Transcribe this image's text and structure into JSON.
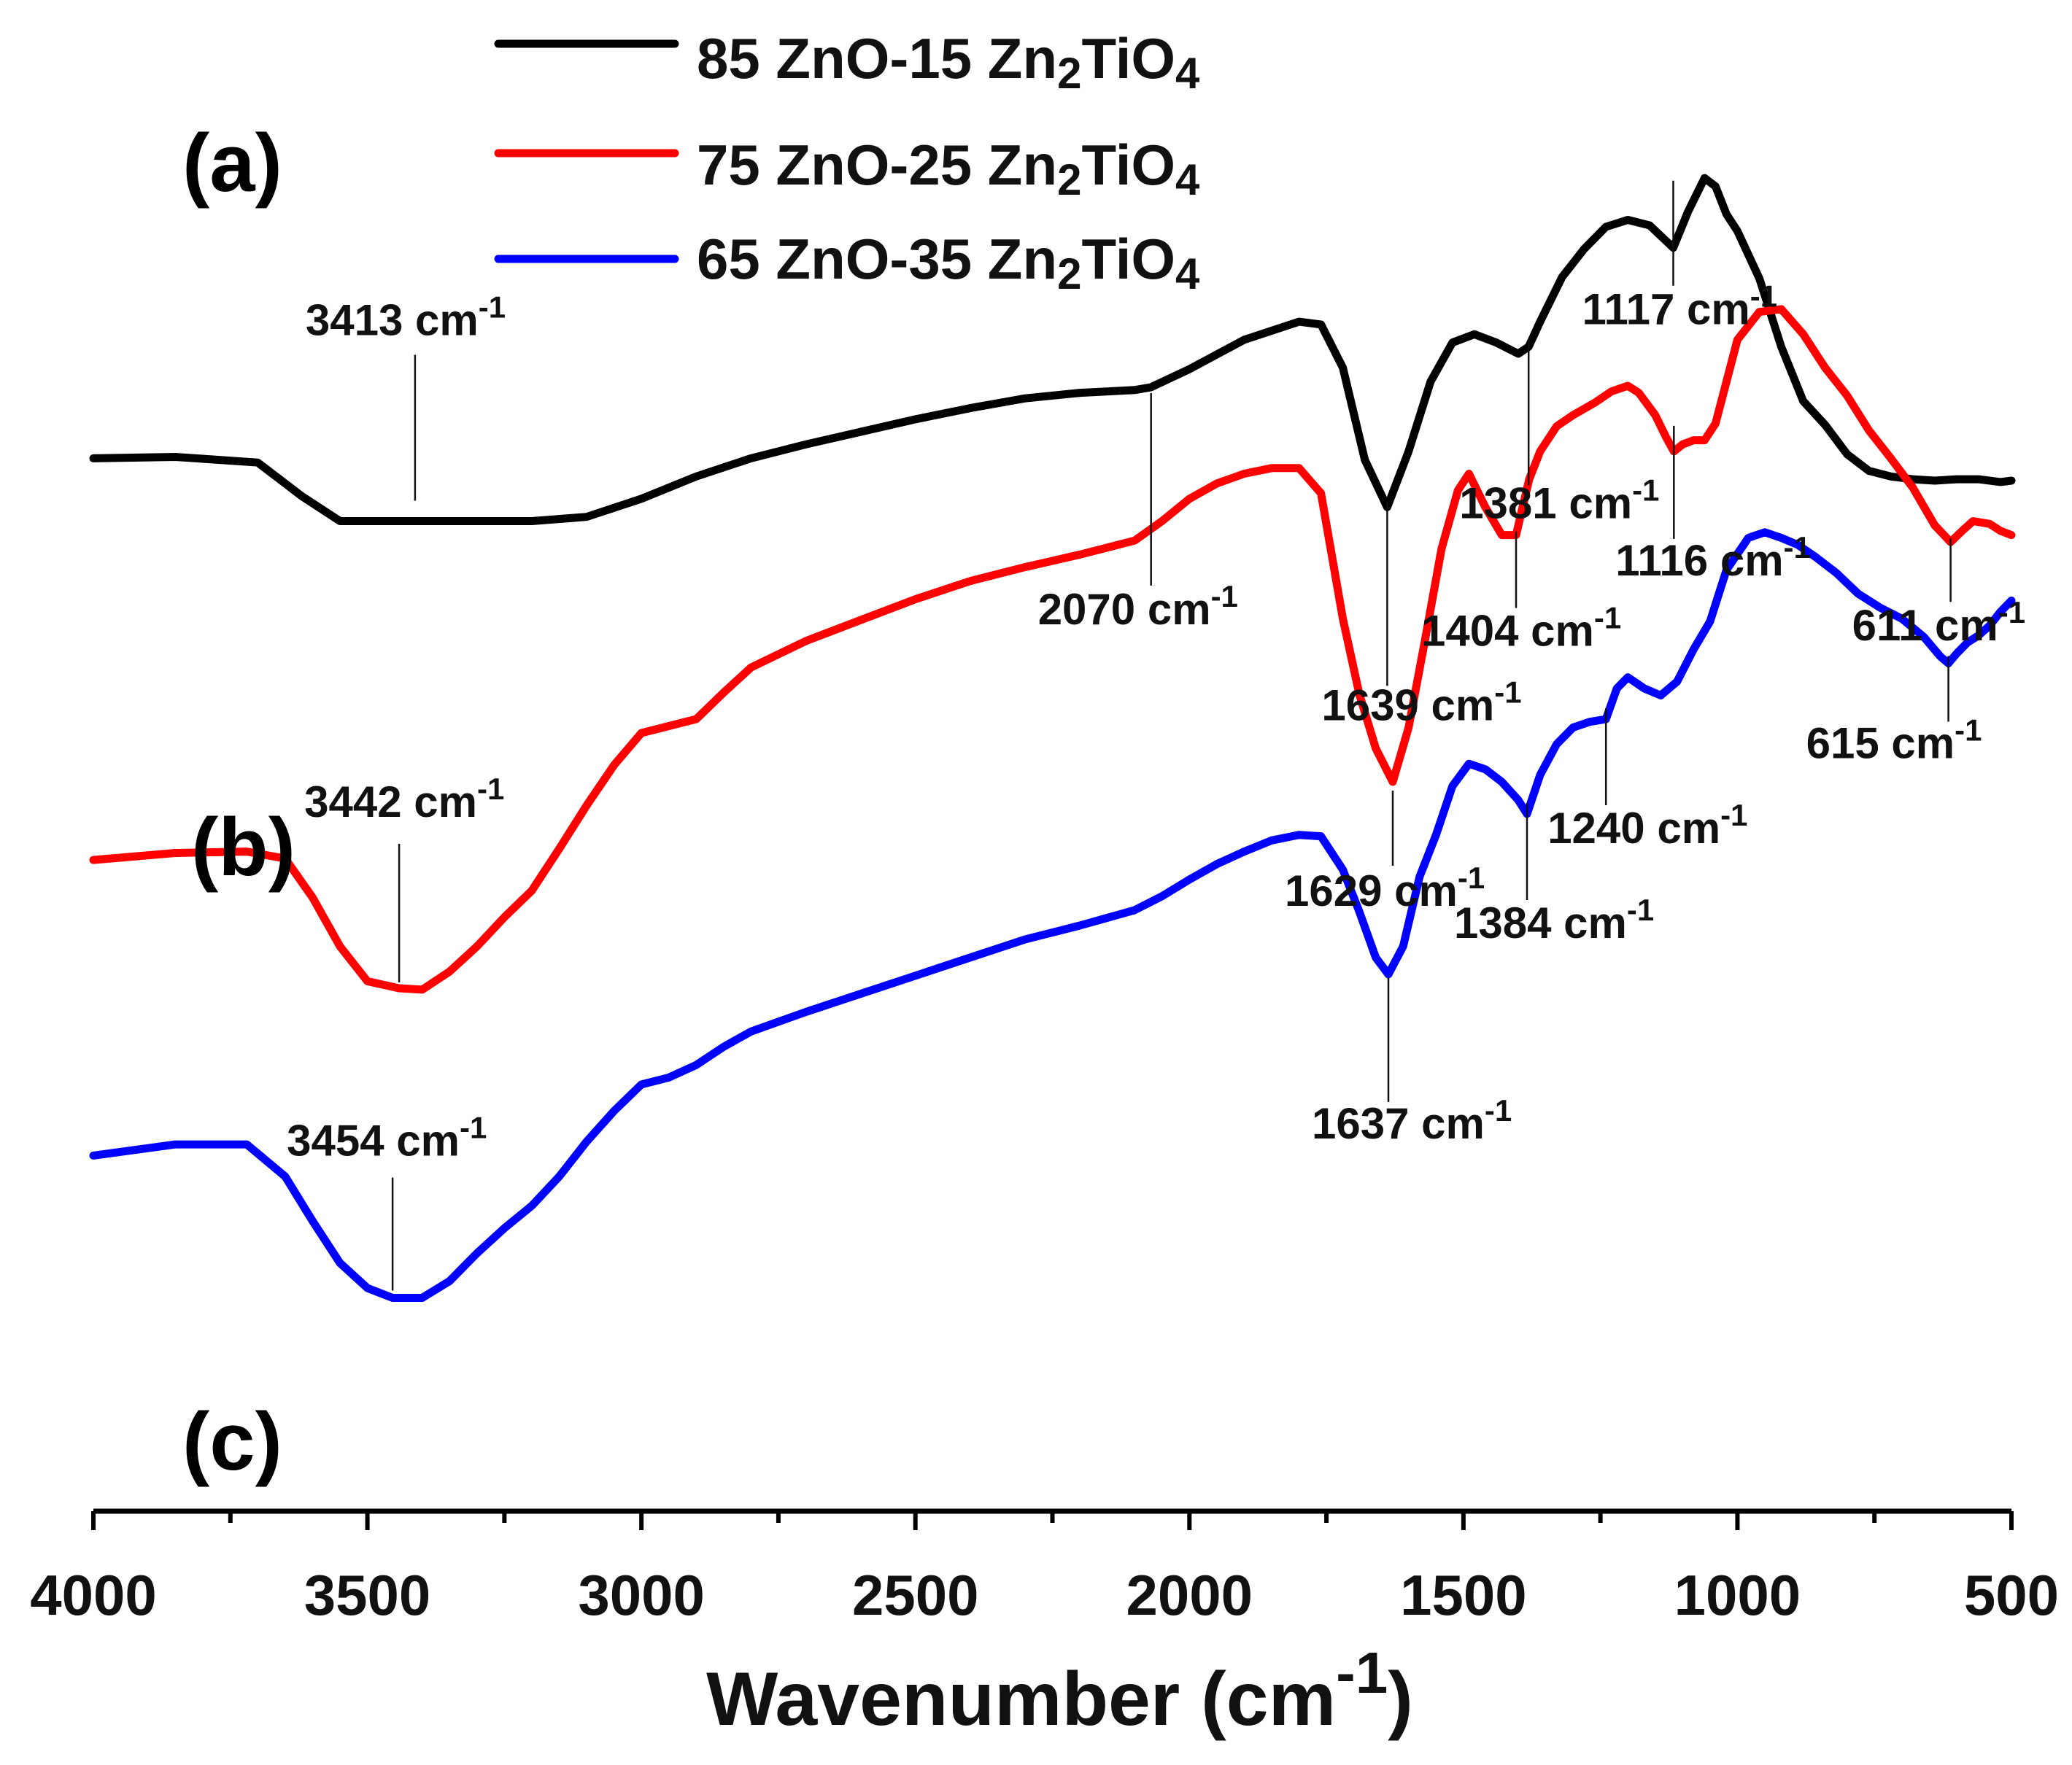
{
  "chart_data": {
    "type": "line",
    "title": "",
    "xlabel": "Wavenumber (cm",
    "xlabel_sup": "-1",
    "xlabel_close": ")",
    "ylabel": "",
    "xlim": [
      4000,
      500
    ],
    "x_reversed": true,
    "ylim": [
      0,
      100
    ],
    "y_axis_shown": false,
    "grid": false,
    "legend_position": "top-center",
    "x_ticks": [
      4000,
      3500,
      3000,
      2500,
      2000,
      1500,
      1000,
      500
    ],
    "x_tick_labels": [
      "4000",
      "3500",
      "3000",
      "2500",
      "2000",
      "1500",
      "1000",
      "500"
    ],
    "series": [
      {
        "name": "85 ZnO-15 Zn2TiO4",
        "legend_label": {
          "lead": "85 ZnO-15 Zn",
          "sub1": "2",
          "mid": "TiO",
          "sub2": "4"
        },
        "panel": "(a)",
        "color": "#000000",
        "x": [
          4000,
          3850,
          3700,
          3620,
          3550,
          3413,
          3300,
          3200,
          3100,
          3000,
          2900,
          2800,
          2700,
          2600,
          2500,
          2400,
          2300,
          2200,
          2100,
          2070,
          2000,
          1900,
          1800,
          1760,
          1720,
          1680,
          1639,
          1600,
          1560,
          1520,
          1480,
          1440,
          1400,
          1381,
          1360,
          1320,
          1280,
          1240,
          1200,
          1160,
          1117,
          1090,
          1060,
          1040,
          1020,
          1000,
          960,
          920,
          880,
          840,
          800,
          760,
          720,
          680,
          640,
          600,
          560,
          520,
          500
        ],
        "y": [
          75.5,
          75.6,
          75.2,
          72.8,
          71.0,
          71.0,
          71.0,
          71.0,
          71.3,
          72.6,
          74.2,
          75.5,
          76.5,
          77.4,
          78.3,
          79.1,
          79.8,
          80.2,
          80.4,
          80.6,
          81.9,
          84.0,
          85.3,
          85.1,
          82.0,
          75.4,
          72.0,
          76.0,
          81.0,
          83.8,
          84.4,
          83.8,
          83.0,
          83.5,
          85.3,
          88.5,
          90.5,
          92.1,
          92.6,
          92.2,
          90.6,
          93.2,
          95.6,
          95.0,
          93.0,
          91.8,
          88.4,
          83.5,
          79.6,
          77.9,
          75.8,
          74.6,
          74.2,
          74.0,
          73.9,
          74.0,
          74.0,
          73.8,
          73.9
        ],
        "peak_labels": [
          {
            "x": 3413,
            "text": "3413 cm",
            "sup": "-1"
          },
          {
            "x": 2070,
            "text": "2070 cm",
            "sup": "-1"
          },
          {
            "x": 1639,
            "text": "1639 cm",
            "sup": "-1"
          },
          {
            "x": 1381,
            "text": "1381 cm",
            "sup": "-1"
          },
          {
            "x": 1117,
            "text": "1117 cm",
            "sup": "-1"
          }
        ]
      },
      {
        "name": "75 ZnO-25 Zn2TiO4",
        "legend_label": {
          "lead": "75 ZnO-25 Zn",
          "sub1": "2",
          "mid": "TiO",
          "sub2": "4"
        },
        "panel": "(b)",
        "color": "#ff0000",
        "x": [
          4000,
          3850,
          3720,
          3650,
          3600,
          3550,
          3500,
          3442,
          3400,
          3350,
          3300,
          3250,
          3200,
          3150,
          3100,
          3050,
          3000,
          2950,
          2900,
          2850,
          2800,
          2700,
          2600,
          2500,
          2400,
          2300,
          2200,
          2100,
          2050,
          2000,
          1950,
          1900,
          1850,
          1800,
          1760,
          1720,
          1690,
          1660,
          1629,
          1600,
          1570,
          1540,
          1510,
          1490,
          1460,
          1430,
          1404,
          1380,
          1360,
          1330,
          1300,
          1260,
          1230,
          1200,
          1180,
          1150,
          1130,
          1116,
          1100,
          1080,
          1060,
          1040,
          1000,
          960,
          920,
          880,
          840,
          800,
          760,
          720,
          680,
          640,
          611,
          590,
          570,
          540,
          520,
          500
        ],
        "y": [
          46.7,
          47.2,
          47.3,
          46.8,
          44.0,
          40.5,
          38.0,
          37.5,
          37.4,
          38.7,
          40.5,
          42.6,
          44.5,
          47.5,
          50.6,
          53.5,
          55.8,
          56.3,
          56.8,
          58.7,
          60.5,
          62.4,
          63.9,
          65.4,
          66.7,
          67.7,
          68.6,
          69.6,
          71.0,
          72.6,
          73.7,
          74.4,
          74.8,
          74.8,
          73.0,
          64.0,
          58.6,
          54.7,
          52.3,
          56.2,
          62.5,
          69.0,
          73.2,
          74.4,
          72.0,
          70.0,
          70.0,
          74.0,
          76.0,
          77.8,
          78.6,
          79.5,
          80.3,
          80.7,
          80.2,
          78.6,
          77.0,
          76.0,
          76.5,
          76.8,
          76.8,
          78.0,
          84.0,
          86.0,
          86.2,
          84.4,
          82.0,
          80.0,
          77.5,
          75.5,
          73.4,
          70.7,
          69.5,
          70.3,
          71.0,
          70.8,
          70.3,
          70.0
        ],
        "peak_labels": [
          {
            "x": 3442,
            "text": "3442 cm",
            "sup": "-1"
          },
          {
            "x": 1629,
            "text": "1629 cm",
            "sup": "-1"
          },
          {
            "x": 1404,
            "text": "1404 cm",
            "sup": "-1"
          },
          {
            "x": 1116,
            "text": "1116 cm",
            "sup": "-1"
          },
          {
            "x": 611,
            "text": "611 cm",
            "sup": "-1"
          }
        ]
      },
      {
        "name": "65 ZnO-35 Zn2TiO4",
        "legend_label": {
          "lead": "65 ZnO-35 Zn",
          "sub1": "2",
          "mid": "TiO",
          "sub2": "4"
        },
        "panel": "(c)",
        "color": "#0000ff",
        "x": [
          4000,
          3850,
          3720,
          3650,
          3600,
          3550,
          3500,
          3454,
          3400,
          3350,
          3300,
          3250,
          3200,
          3150,
          3100,
          3050,
          3000,
          2950,
          2900,
          2850,
          2800,
          2700,
          2600,
          2500,
          2400,
          2300,
          2200,
          2100,
          2050,
          2000,
          1950,
          1900,
          1850,
          1800,
          1760,
          1720,
          1690,
          1660,
          1637,
          1610,
          1580,
          1550,
          1520,
          1490,
          1460,
          1430,
          1400,
          1384,
          1360,
          1330,
          1300,
          1270,
          1240,
          1220,
          1200,
          1170,
          1140,
          1110,
          1080,
          1050,
          1020,
          980,
          950,
          920,
          890,
          860,
          820,
          780,
          740,
          700,
          660,
          630,
          615,
          600,
          580,
          560,
          540,
          520,
          500
        ],
        "y": [
          25.5,
          26.3,
          26.3,
          24.0,
          20.8,
          17.8,
          16.0,
          15.3,
          15.3,
          16.5,
          18.5,
          20.3,
          21.9,
          24.0,
          26.5,
          28.7,
          30.6,
          31.1,
          32.0,
          33.3,
          34.4,
          35.8,
          37.1,
          38.4,
          39.7,
          41.0,
          42.0,
          43.1,
          44.1,
          45.3,
          46.4,
          47.3,
          48.1,
          48.5,
          48.4,
          46.0,
          43.0,
          39.7,
          38.5,
          40.5,
          45.5,
          48.5,
          52.0,
          53.6,
          53.2,
          52.3,
          51.0,
          50.0,
          52.8,
          55.0,
          56.2,
          56.6,
          56.8,
          59.0,
          59.8,
          59.0,
          58.5,
          59.5,
          61.8,
          63.8,
          67.5,
          69.8,
          70.2,
          69.8,
          69.3,
          68.5,
          67.3,
          65.8,
          64.8,
          64.0,
          62.7,
          61.3,
          60.8,
          61.5,
          62.3,
          62.8,
          63.5,
          64.5,
          65.3
        ],
        "peak_labels": [
          {
            "x": 3454,
            "text": "3454 cm",
            "sup": "-1"
          },
          {
            "x": 1637,
            "text": "1637 cm",
            "sup": "-1"
          },
          {
            "x": 1384,
            "text": "1384 cm",
            "sup": "-1"
          },
          {
            "x": 1240,
            "text": "1240 cm",
            "sup": "-1"
          },
          {
            "x": 615,
            "text": "615 cm",
            "sup": "-1"
          }
        ]
      }
    ]
  }
}
